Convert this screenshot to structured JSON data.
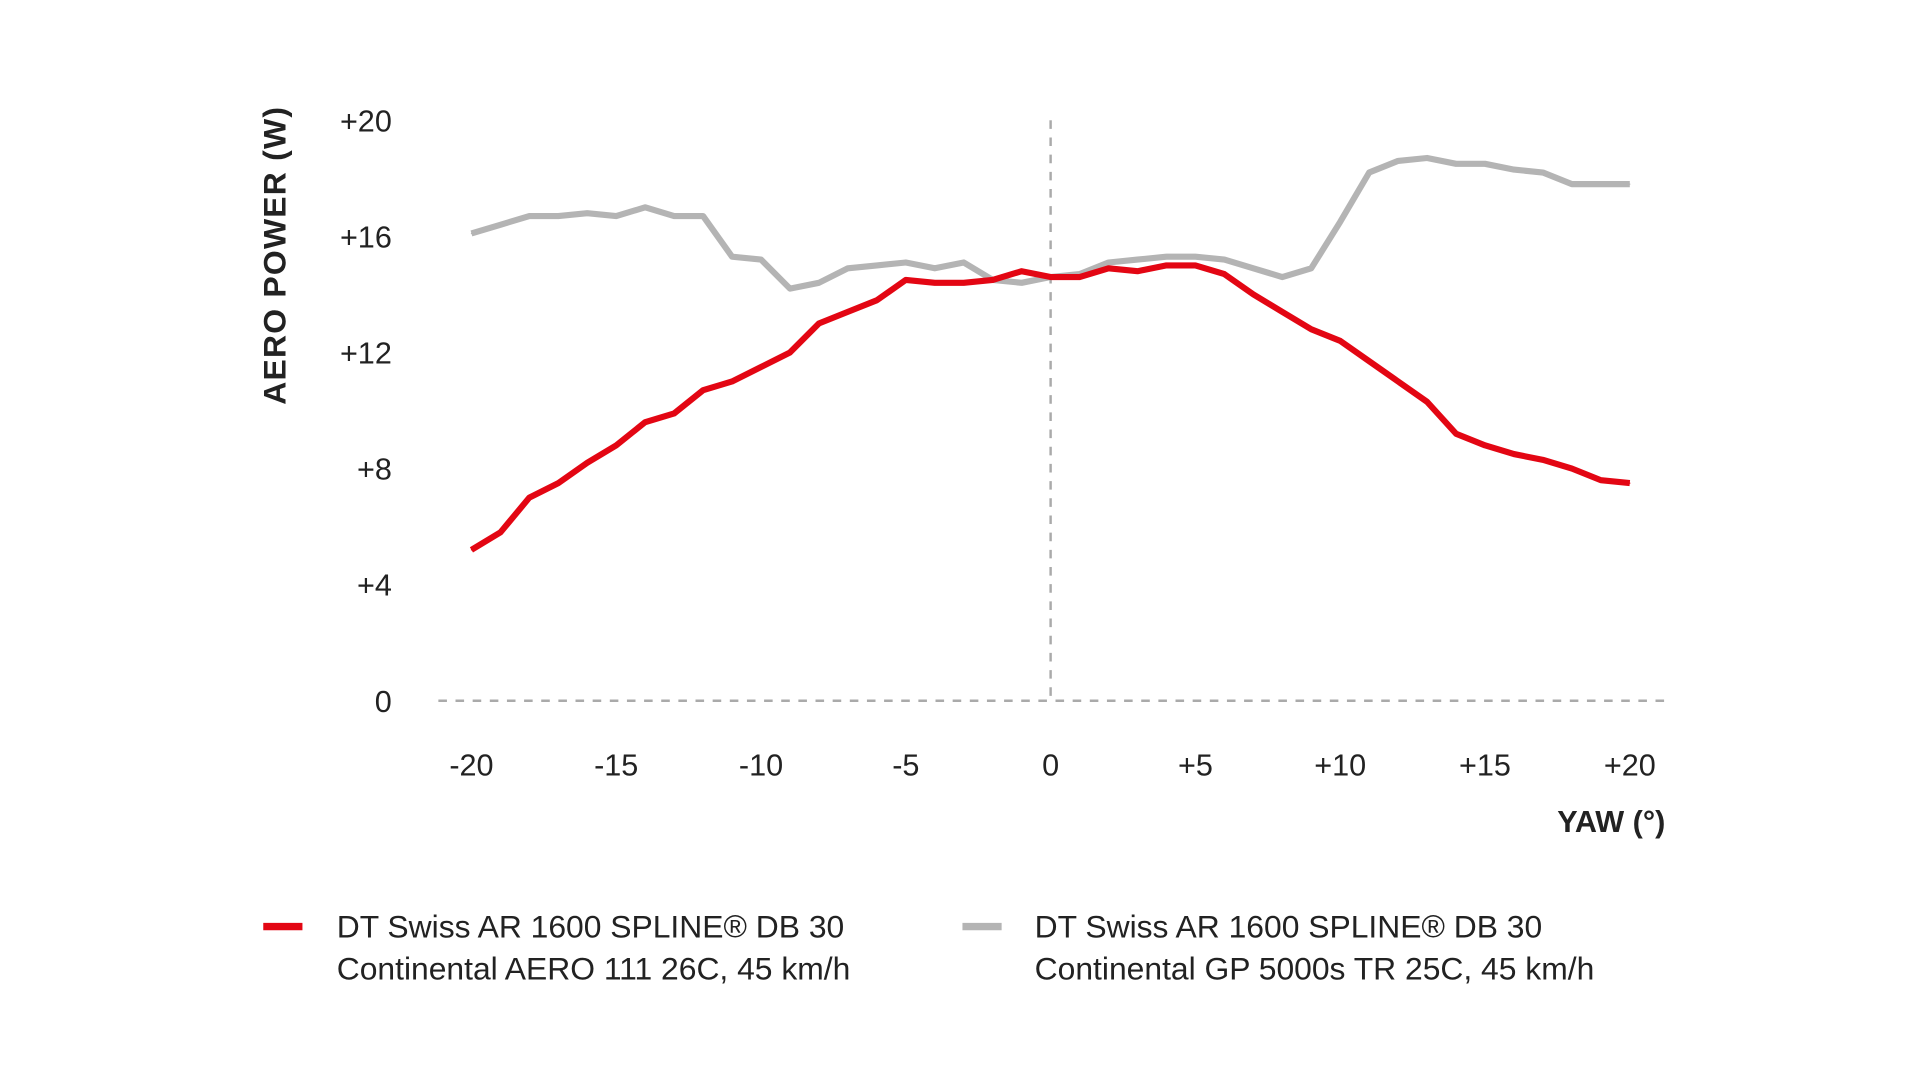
{
  "chart_data": {
    "type": "line",
    "title": "",
    "xlabel": "YAW (°)",
    "ylabel": "AERO POWER (W)",
    "xlim": [
      -20,
      20
    ],
    "ylim": [
      0,
      20
    ],
    "grid": false,
    "legend_placement": "bottom",
    "x_ticks": [
      "-20",
      "-15",
      "-10",
      "-5",
      "0",
      "+5",
      "+10",
      "+15",
      "+20"
    ],
    "x_tick_values": [
      -20,
      -15,
      -10,
      -5,
      0,
      5,
      10,
      15,
      20
    ],
    "y_ticks": [
      "0",
      "+4",
      "+8",
      "+12",
      "+16",
      "+20"
    ],
    "y_tick_values": [
      0,
      4,
      8,
      12,
      16,
      20
    ],
    "x": [
      -20,
      -19,
      -18,
      -17,
      -16,
      -15,
      -14,
      -13,
      -12,
      -11,
      -10,
      -9,
      -8,
      -7,
      -6,
      -5,
      -4,
      -3,
      -2,
      -1,
      0,
      1,
      2,
      3,
      4,
      5,
      6,
      7,
      8,
      9,
      10,
      11,
      12,
      13,
      14,
      15,
      16,
      17,
      18,
      19,
      20
    ],
    "series": [
      {
        "name": "DT Swiss AR 1600 SPLINE® DB 30 / Continental AERO 111 26C, 45 km/h",
        "legend_line1": "DT Swiss AR 1600 SPLINE® DB 30",
        "legend_line2": "Continental AERO 111 26C, 45 km/h",
        "color": "#e30613",
        "values": [
          5.2,
          5.8,
          7.0,
          7.5,
          8.2,
          8.8,
          9.6,
          9.9,
          10.7,
          11.0,
          11.5,
          12.0,
          13.0,
          13.4,
          13.8,
          14.5,
          14.4,
          14.4,
          14.5,
          14.8,
          14.6,
          14.6,
          14.9,
          14.8,
          15.0,
          15.0,
          14.7,
          14.0,
          13.4,
          12.8,
          12.4,
          11.7,
          11.0,
          10.3,
          9.2,
          8.8,
          8.5,
          8.3,
          8.0,
          7.6,
          7.5
        ]
      },
      {
        "name": "DT Swiss AR 1600 SPLINE® DB 30 / Continental GP 5000s TR 25C, 45 km/h",
        "legend_line1": "DT Swiss AR 1600 SPLINE® DB 30",
        "legend_line2": "Continental GP 5000s TR 25C, 45 km/h",
        "color": "#b4b4b4",
        "values": [
          16.1,
          16.4,
          16.7,
          16.7,
          16.8,
          16.7,
          17.0,
          16.7,
          16.7,
          15.3,
          15.2,
          14.2,
          14.4,
          14.9,
          15.0,
          15.1,
          14.9,
          15.1,
          14.5,
          14.4,
          14.6,
          14.7,
          15.1,
          15.2,
          15.3,
          15.3,
          15.2,
          14.9,
          14.6,
          14.9,
          16.5,
          18.2,
          18.6,
          18.7,
          18.5,
          18.5,
          18.3,
          18.2,
          17.8,
          17.8,
          17.8
        ]
      }
    ]
  }
}
